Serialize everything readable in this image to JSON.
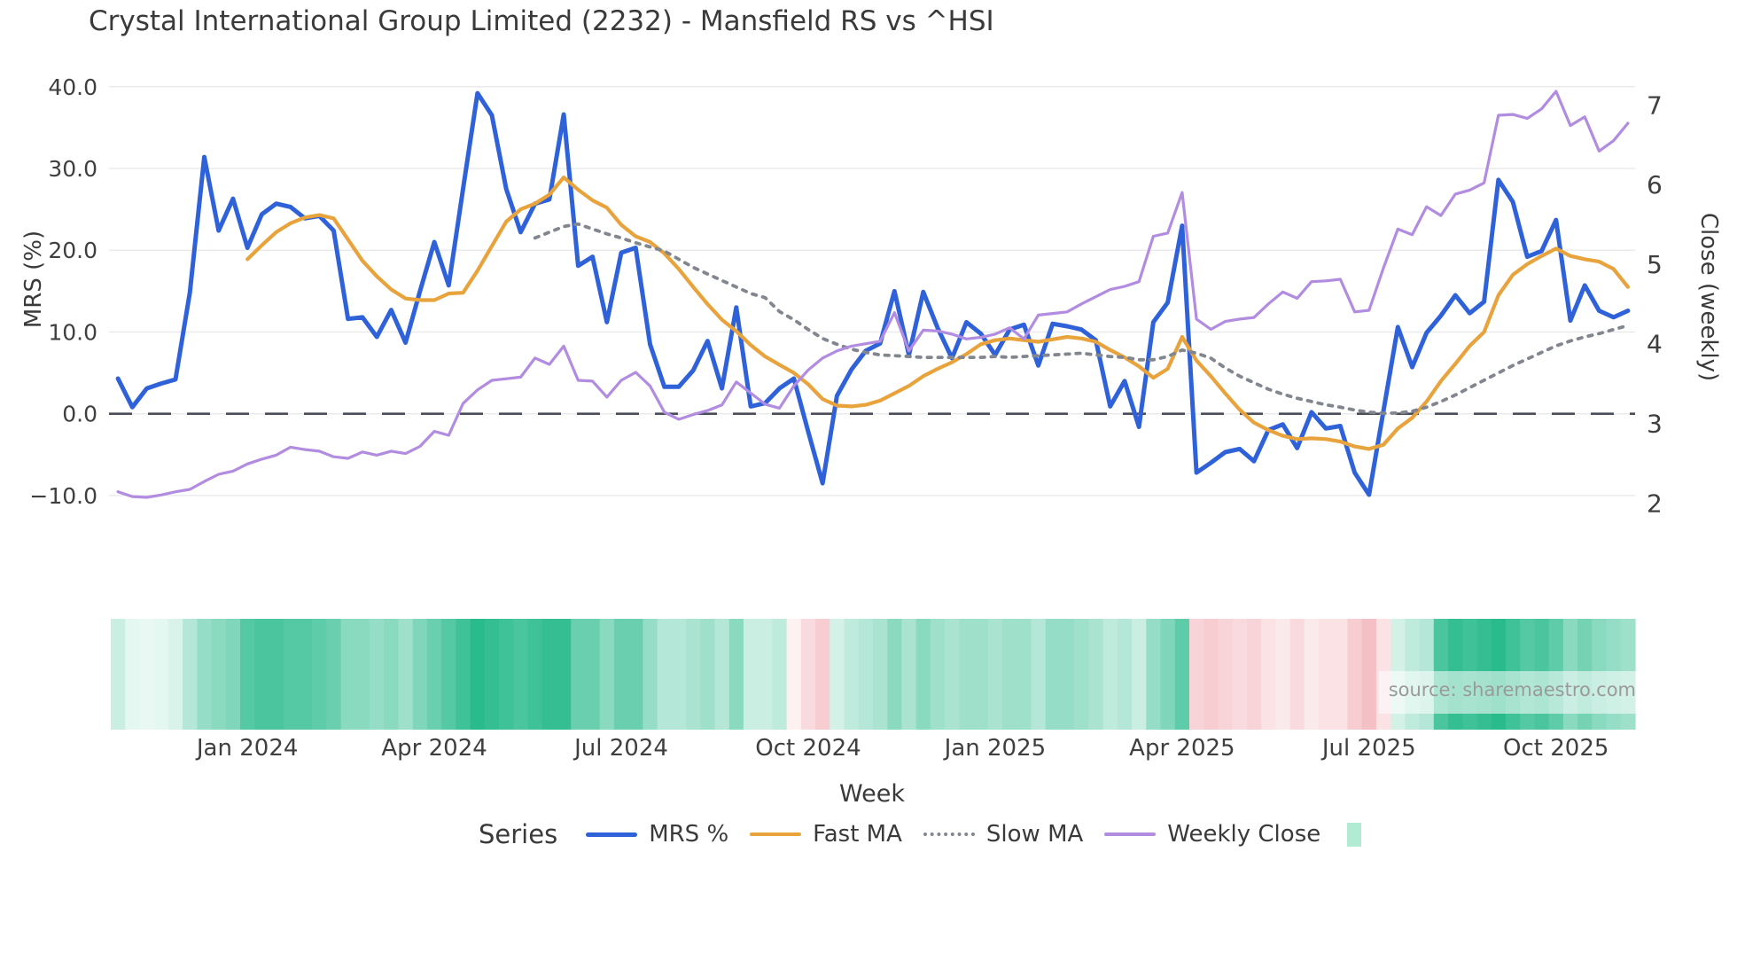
{
  "title": "Crystal International Group Limited (2232) - Mansfield RS vs ^HSI",
  "source": "source: sharemaestro.com",
  "axes": {
    "left": {
      "title": "MRS (%)",
      "tick_labels": [
        "40.0",
        "30.0",
        "20.0",
        "10.0",
        "0.0",
        "−10.0"
      ],
      "tick_values": [
        40,
        30,
        20,
        10,
        0,
        -10
      ]
    },
    "right": {
      "title": "Close (weekly)",
      "tick_labels": [
        "7",
        "6",
        "5",
        "4",
        "3",
        "2"
      ],
      "tick_values": [
        7,
        6,
        5,
        4,
        3,
        2
      ]
    },
    "x": {
      "title": "Week",
      "ticks": [
        {
          "label": "Jan 2024",
          "week": 9
        },
        {
          "label": "Apr 2024",
          "week": 22
        },
        {
          "label": "Jul 2024",
          "week": 35
        },
        {
          "label": "Oct 2024",
          "week": 48
        },
        {
          "label": "Jan 2025",
          "week": 61
        },
        {
          "label": "Apr 2025",
          "week": 74
        },
        {
          "label": "Jul 2025",
          "week": 87
        },
        {
          "label": "Oct 2025",
          "week": 100
        }
      ]
    }
  },
  "legend": {
    "title": "Series",
    "items": [
      {
        "label": "MRS %",
        "color": "#2f62d9",
        "style": "solid"
      },
      {
        "label": "Fast MA",
        "color": "#e8a33c",
        "style": "solid"
      },
      {
        "label": "Slow MA",
        "color": "#82878f",
        "style": "dotted"
      },
      {
        "label": "Weekly Close",
        "color": "#b18ce0",
        "style": "solid"
      }
    ],
    "heatmap_swatch_color": "#b2ebd3"
  },
  "chart_data": {
    "type": "line",
    "x_unit": "week",
    "x_start_date": "2023-10-30",
    "weeks": 106,
    "ylim_left": [
      -17,
      41
    ],
    "ylim_right": [
      1.3,
      7.4
    ],
    "grid": "horizontal-faint",
    "zero_line": {
      "value": 0,
      "style": "dashed",
      "color": "#4a4e59"
    },
    "series": [
      {
        "name": "MRS %",
        "axis": "left",
        "color": "#2f62d9",
        "width": 5,
        "start_index": 0,
        "values": [
          4.3,
          0.8,
          3.1,
          3.7,
          4.2,
          14.8,
          31.4,
          22.4,
          26.3,
          20.3,
          24.4,
          25.7,
          25.3,
          23.9,
          24.2,
          22.4,
          11.6,
          11.8,
          9.4,
          12.7,
          8.7,
          15.0,
          21.0,
          15.7,
          27.5,
          39.2,
          36.5,
          27.5,
          22.2,
          25.7,
          26.2,
          36.6,
          18.1,
          19.2,
          11.2,
          19.7,
          20.3,
          8.5,
          3.3,
          3.3,
          5.3,
          8.9,
          3.1,
          13.0,
          0.9,
          1.3,
          3.1,
          4.3,
          -2.2,
          -8.5,
          2.2,
          5.4,
          7.7,
          8.6,
          15.0,
          7.2,
          14.9,
          10.5,
          6.8,
          11.2,
          9.8,
          7.2,
          10.3,
          10.9,
          5.9,
          11.0,
          10.7,
          10.3,
          9.0,
          0.9,
          4.0,
          -1.6,
          11.2,
          13.6,
          23.0,
          -7.2,
          -6.0,
          -4.7,
          -4.3,
          -5.8,
          -2.0,
          -1.3,
          -4.2,
          0.2,
          -1.8,
          -1.5,
          -7.2,
          -9.9,
          0.3,
          10.6,
          5.7,
          9.9,
          12.0,
          14.5,
          12.3,
          13.7,
          28.6,
          25.9,
          19.2,
          19.9,
          23.7,
          11.4,
          15.7,
          12.6,
          11.8,
          12.6
        ]
      },
      {
        "name": "Fast MA",
        "axis": "left",
        "color": "#e8a33c",
        "width": 4.2,
        "start_index": 9,
        "values": [
          18.9,
          20.6,
          22.2,
          23.3,
          24.0,
          24.3,
          23.9,
          21.3,
          18.7,
          16.8,
          15.2,
          14.1,
          13.9,
          13.9,
          14.7,
          14.8,
          17.5,
          20.5,
          23.5,
          25.0,
          25.7,
          26.8,
          28.9,
          27.4,
          26.1,
          25.2,
          23.1,
          21.7,
          21.0,
          19.6,
          17.7,
          15.5,
          13.4,
          11.5,
          10.1,
          8.4,
          7.0,
          6.0,
          5.0,
          3.6,
          1.8,
          1.0,
          0.9,
          1.1,
          1.6,
          2.5,
          3.4,
          4.6,
          5.5,
          6.3,
          7.3,
          8.5,
          9.0,
          9.2,
          9.0,
          8.8,
          9.1,
          9.4,
          9.2,
          8.8,
          7.8,
          6.9,
          5.8,
          4.4,
          5.5,
          9.4,
          6.5,
          4.6,
          2.5,
          0.5,
          -1.1,
          -2.0,
          -2.7,
          -3.1,
          -3.0,
          -3.1,
          -3.4,
          -4.0,
          -4.3,
          -3.8,
          -1.8,
          -0.5,
          1.5,
          4.0,
          6.1,
          8.3,
          10.0,
          14.5,
          17.0,
          18.3,
          19.3,
          20.2,
          19.3,
          18.9,
          18.6,
          17.7,
          15.5
        ]
      },
      {
        "name": "Slow MA",
        "axis": "left",
        "color": "#82878f",
        "width": 3.8,
        "dash": "4.5 7.5",
        "start_index": 29,
        "values": [
          21.5,
          22.2,
          22.9,
          23.2,
          22.6,
          22.0,
          21.5,
          20.9,
          20.4,
          19.9,
          18.9,
          17.9,
          17.1,
          16.3,
          15.5,
          14.7,
          14.2,
          12.5,
          11.5,
          10.3,
          9.2,
          8.5,
          7.9,
          7.5,
          7.2,
          7.1,
          7.0,
          6.9,
          6.9,
          6.9,
          6.9,
          6.9,
          7.0,
          6.9,
          7.0,
          7.1,
          7.2,
          7.3,
          7.4,
          7.2,
          7.0,
          6.9,
          6.6,
          6.6,
          7.0,
          7.8,
          7.4,
          6.8,
          5.6,
          4.6,
          3.8,
          3.0,
          2.4,
          1.9,
          1.5,
          1.1,
          0.8,
          0.45,
          0.2,
          0.05,
          0.1,
          0.3,
          0.8,
          1.5,
          2.3,
          3.2,
          4.1,
          5.0,
          5.9,
          6.7,
          7.5,
          8.3,
          8.9,
          9.4,
          9.8,
          10.3,
          10.8
        ]
      },
      {
        "name": "Weekly Close",
        "axis": "right",
        "color": "#b18ce0",
        "width": 3.2,
        "start_index": 0,
        "values": [
          2.14,
          2.08,
          2.07,
          2.1,
          2.14,
          2.17,
          2.27,
          2.36,
          2.4,
          2.49,
          2.55,
          2.6,
          2.7,
          2.67,
          2.65,
          2.58,
          2.56,
          2.64,
          2.6,
          2.65,
          2.62,
          2.71,
          2.9,
          2.85,
          3.25,
          3.42,
          3.54,
          3.56,
          3.58,
          3.82,
          3.74,
          3.97,
          3.54,
          3.53,
          3.33,
          3.54,
          3.64,
          3.47,
          3.14,
          3.05,
          3.11,
          3.16,
          3.23,
          3.52,
          3.38,
          3.24,
          3.19,
          3.47,
          3.67,
          3.82,
          3.91,
          3.97,
          4.0,
          4.03,
          4.39,
          3.91,
          4.17,
          4.16,
          4.12,
          4.06,
          4.08,
          4.12,
          4.2,
          4.06,
          4.36,
          4.38,
          4.4,
          4.5,
          4.59,
          4.68,
          4.72,
          4.78,
          5.35,
          5.39,
          5.9,
          4.31,
          4.18,
          4.28,
          4.31,
          4.33,
          4.5,
          4.65,
          4.57,
          4.78,
          4.79,
          4.81,
          4.4,
          4.42,
          4.95,
          5.44,
          5.37,
          5.72,
          5.61,
          5.88,
          5.93,
          6.02,
          6.87,
          6.88,
          6.83,
          6.95,
          7.17,
          6.74,
          6.85,
          6.42,
          6.55,
          6.77
        ]
      }
    ],
    "heatmap": {
      "description": "weekly strength strip under chart, green positive / pink negative",
      "positive_color": "#2abb8c",
      "negative_color": "#e7707d",
      "values": [
        0.25,
        0.12,
        0.1,
        0.12,
        0.18,
        0.35,
        0.5,
        0.55,
        0.6,
        0.8,
        0.85,
        0.85,
        0.8,
        0.8,
        0.75,
        0.7,
        0.55,
        0.55,
        0.5,
        0.55,
        0.45,
        0.6,
        0.7,
        0.8,
        0.9,
        1.0,
        0.95,
        0.9,
        0.85,
        0.9,
        0.95,
        0.95,
        0.7,
        0.7,
        0.55,
        0.7,
        0.7,
        0.5,
        0.35,
        0.35,
        0.4,
        0.45,
        0.35,
        0.55,
        0.25,
        0.25,
        0.3,
        -0.1,
        -0.25,
        -0.35,
        0.2,
        0.3,
        0.35,
        0.4,
        0.55,
        0.4,
        0.55,
        0.45,
        0.4,
        0.45,
        0.45,
        0.4,
        0.45,
        0.45,
        0.35,
        0.5,
        0.5,
        0.45,
        0.4,
        0.3,
        0.35,
        0.25,
        0.5,
        0.6,
        0.75,
        -0.3,
        -0.35,
        -0.3,
        -0.25,
        -0.3,
        -0.2,
        -0.15,
        -0.25,
        -0.15,
        -0.2,
        -0.2,
        -0.35,
        -0.45,
        -0.2,
        0.2,
        0.3,
        0.35,
        0.85,
        0.95,
        0.9,
        0.95,
        1.0,
        0.9,
        0.8,
        0.85,
        0.75,
        0.55,
        0.65,
        0.55,
        0.5,
        0.45
      ]
    }
  }
}
